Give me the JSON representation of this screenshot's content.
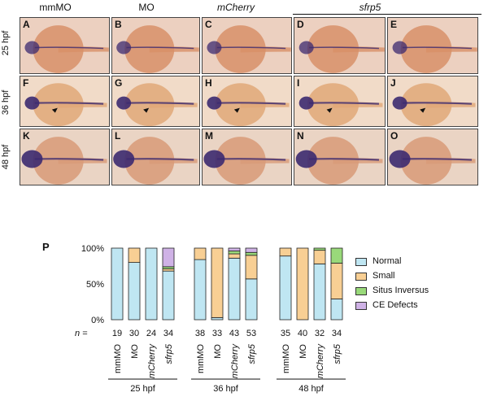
{
  "figure": {
    "column_headers": [
      {
        "text": "mmMO",
        "italic": false
      },
      {
        "text": "MO",
        "italic": false
      },
      {
        "text": "mCherry",
        "italic": true
      },
      {
        "text": "sfrp5",
        "italic": true
      }
    ],
    "row_labels": [
      "25 hpf",
      "36 hpf",
      "48 hpf"
    ],
    "panel_labels": [
      [
        "A",
        "B",
        "C",
        "D",
        "E"
      ],
      [
        "F",
        "G",
        "H",
        "I",
        "J"
      ],
      [
        "K",
        "L",
        "M",
        "N",
        "O"
      ]
    ],
    "chart_panel_label": "P",
    "row_backgrounds": [
      "#ecd0c0",
      "#f1dbc8",
      "#ead4c4"
    ],
    "embryo_colors": [
      "#d89068",
      "#e1a878",
      "#d89a78"
    ],
    "stain_color": "#3c2a70"
  },
  "chart_data": {
    "type": "bar",
    "stacked": true,
    "ylabel_ticks": [
      "0%",
      "50%",
      "100%"
    ],
    "ylim": [
      0,
      100
    ],
    "n_label": "n =",
    "groups": [
      {
        "label": "25 hpf",
        "bars": [
          {
            "name": "mmMO",
            "italic": false,
            "n": "19",
            "values": [
              100,
              0,
              0,
              0
            ]
          },
          {
            "name": "MO",
            "italic": false,
            "n": "30",
            "values": [
              80,
              20,
              0,
              0
            ]
          },
          {
            "name": "mCherry",
            "italic": true,
            "n": "24",
            "values": [
              100,
              0,
              0,
              0
            ]
          },
          {
            "name": "sfrp5",
            "italic": true,
            "n": "34",
            "values": [
              68,
              3,
              3,
              26
            ]
          }
        ]
      },
      {
        "label": "36 hpf",
        "bars": [
          {
            "name": "mmMO",
            "italic": false,
            "n": "38",
            "values": [
              84,
              16,
              0,
              0
            ]
          },
          {
            "name": "MO",
            "italic": false,
            "n": "33",
            "values": [
              3,
              97,
              0,
              0
            ]
          },
          {
            "name": "mCherry",
            "italic": true,
            "n": "43",
            "values": [
              86,
              6,
              4,
              4
            ]
          },
          {
            "name": "sfrp5",
            "italic": true,
            "n": "53",
            "values": [
              57,
              33,
              4,
              6
            ]
          }
        ]
      },
      {
        "label": "48 hpf",
        "bars": [
          {
            "name": "mmMO",
            "italic": false,
            "n": "35",
            "values": [
              89,
              11,
              0,
              0
            ]
          },
          {
            "name": "MO",
            "italic": false,
            "n": "40",
            "values": [
              0,
              100,
              0,
              0
            ]
          },
          {
            "name": "mCherry",
            "italic": true,
            "n": "32",
            "values": [
              78,
              19,
              3,
              0
            ]
          },
          {
            "name": "sfrp5",
            "italic": true,
            "n": "34",
            "values": [
              29,
              50,
              21,
              0
            ]
          }
        ]
      }
    ],
    "legend": [
      {
        "label": "Normal",
        "color": "#bfe6f2"
      },
      {
        "label": "Small",
        "color": "#f8cf94"
      },
      {
        "label": "Situs Inversus",
        "color": "#99d97a"
      },
      {
        "label": "CE Defects",
        "color": "#cfb2e6"
      }
    ]
  }
}
